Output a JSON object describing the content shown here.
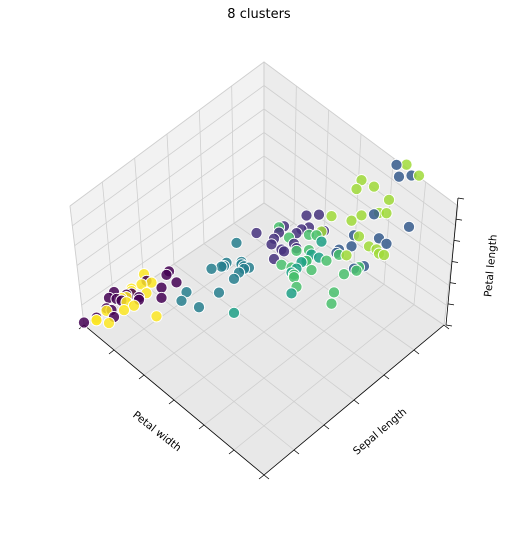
{
  "chart_data": {
    "type": "scatter",
    "projection": "3d",
    "title": "8 clusters",
    "xlabel": "Petal width",
    "ylabel": "Sepal length",
    "zlabel": "Petal length",
    "tick_labels": "hidden",
    "grid": true,
    "legend": "none",
    "colormap": "viridis",
    "point_edge_color": "#ffffff",
    "point_alpha": 0.85,
    "series": [
      {
        "color": "#440154",
        "points": [
          [
            0.2,
            5.1,
            1.4
          ],
          [
            0.2,
            4.9,
            1.4
          ],
          [
            0.2,
            4.7,
            1.3
          ],
          [
            0.2,
            4.6,
            1.5
          ],
          [
            0.2,
            5.0,
            1.4
          ],
          [
            0.4,
            5.4,
            1.7
          ],
          [
            0.3,
            4.6,
            1.4
          ],
          [
            0.2,
            5.0,
            1.5
          ],
          [
            0.2,
            4.4,
            1.4
          ],
          [
            0.1,
            4.9,
            1.5
          ],
          [
            0.2,
            5.4,
            1.5
          ],
          [
            0.2,
            4.8,
            1.6
          ],
          [
            0.1,
            4.8,
            1.4
          ],
          [
            0.1,
            4.3,
            1.1
          ],
          [
            0.2,
            5.8,
            1.2
          ],
          [
            0.4,
            5.7,
            1.5
          ],
          [
            0.4,
            5.4,
            1.3
          ],
          [
            0.3,
            5.1,
            1.4
          ],
          [
            0.3,
            5.7,
            1.7
          ],
          [
            0.3,
            5.1,
            1.5
          ]
        ]
      },
      {
        "color": "#46327e",
        "points": [
          [
            1.4,
            6.1,
            4.7
          ],
          [
            1.3,
            6.4,
            4.5
          ],
          [
            1.5,
            6.9,
            4.9
          ],
          [
            1.3,
            6.5,
            4.6
          ],
          [
            1.6,
            6.3,
            4.7
          ],
          [
            1.5,
            6.7,
            4.7
          ],
          [
            1.4,
            6.6,
            4.4
          ],
          [
            1.4,
            6.8,
            4.8
          ],
          [
            1.7,
            6.7,
            5.0
          ],
          [
            1.5,
            6.0,
            4.5
          ],
          [
            1.6,
            6.0,
            5.1
          ],
          [
            1.5,
            6.2,
            4.5
          ],
          [
            1.3,
            6.3,
            4.4
          ],
          [
            1.2,
            6.1,
            4.7
          ],
          [
            1.4,
            6.7,
            4.4
          ],
          [
            1.5,
            6.4,
            4.5
          ]
        ]
      },
      {
        "color": "#365c8d",
        "points": [
          [
            2.5,
            6.3,
            6.0
          ],
          [
            2.1,
            7.1,
            5.9
          ],
          [
            2.2,
            6.5,
            5.8
          ],
          [
            2.1,
            7.6,
            6.6
          ],
          [
            2.5,
            7.2,
            6.1
          ],
          [
            2.0,
            6.5,
            5.1
          ],
          [
            2.1,
            6.4,
            5.6
          ],
          [
            2.3,
            6.4,
            5.3
          ],
          [
            2.2,
            7.7,
            6.7
          ],
          [
            2.3,
            6.9,
            5.7
          ],
          [
            2.0,
            7.7,
            6.7
          ],
          [
            2.1,
            6.7,
            5.7
          ],
          [
            2.4,
            6.9,
            5.7
          ]
        ]
      },
      {
        "color": "#277f8e",
        "points": [
          [
            1.0,
            5.0,
            3.5
          ],
          [
            1.0,
            6.0,
            4.0
          ],
          [
            1.1,
            5.6,
            3.9
          ],
          [
            1.3,
            5.7,
            4.2
          ],
          [
            1.3,
            5.6,
            4.1
          ],
          [
            1.0,
            5.5,
            3.7
          ],
          [
            1.2,
            5.8,
            4.0
          ],
          [
            1.3,
            5.5,
            4.0
          ],
          [
            1.3,
            5.8,
            4.0
          ],
          [
            1.1,
            5.1,
            3.0
          ],
          [
            1.3,
            5.7,
            4.1
          ],
          [
            1.2,
            5.5,
            4.4
          ],
          [
            1.2,
            5.8,
            3.9
          ],
          [
            1.0,
            4.9,
            3.3
          ],
          [
            1.3,
            5.2,
            3.9
          ],
          [
            1.0,
            5.7,
            3.5
          ]
        ]
      },
      {
        "color": "#1fa187",
        "points": [
          [
            1.8,
            6.3,
            4.9
          ],
          [
            1.8,
            6.2,
            4.8
          ],
          [
            1.8,
            6.1,
            4.9
          ],
          [
            1.8,
            5.9,
            4.8
          ],
          [
            1.9,
            5.8,
            5.1
          ],
          [
            1.7,
            4.9,
            4.5
          ],
          [
            2.0,
            5.6,
            4.9
          ],
          [
            1.9,
            6.3,
            5.0
          ],
          [
            1.8,
            6.0,
            4.8
          ],
          [
            1.8,
            6.5,
            5.1
          ]
        ]
      },
      {
        "color": "#4ac16d",
        "points": [
          [
            1.6,
            6.0,
            4.5
          ],
          [
            1.5,
            6.3,
            4.9
          ],
          [
            1.8,
            5.9,
            5.0
          ],
          [
            1.7,
            6.4,
            5.3
          ],
          [
            1.9,
            5.8,
            5.1
          ],
          [
            2.0,
            5.7,
            5.0
          ],
          [
            2.4,
            5.8,
            5.1
          ],
          [
            2.3,
            6.0,
            5.0
          ],
          [
            1.9,
            6.1,
            5.6
          ],
          [
            1.8,
            6.2,
            4.8
          ],
          [
            1.5,
            6.1,
            5.6
          ],
          [
            2.0,
            6.3,
            5.1
          ],
          [
            1.8,
            6.4,
            5.5
          ],
          [
            2.4,
            6.3,
            5.6
          ],
          [
            1.8,
            6.0,
            5.5
          ],
          [
            2.1,
            6.4,
            5.4
          ],
          [
            2.3,
            6.5,
            5.2
          ],
          [
            1.9,
            5.8,
            5.0
          ],
          [
            2.0,
            6.0,
            5.2
          ],
          [
            2.3,
            6.2,
            5.4
          ]
        ]
      },
      {
        "color": "#a0da39",
        "points": [
          [
            2.2,
            6.4,
            5.6
          ],
          [
            2.4,
            6.7,
            5.8
          ],
          [
            2.3,
            6.7,
            5.7
          ],
          [
            2.5,
            6.7,
            5.8
          ],
          [
            2.1,
            6.8,
            5.5
          ],
          [
            2.3,
            6.9,
            5.1
          ],
          [
            1.8,
            6.5,
            5.5
          ],
          [
            2.0,
            6.8,
            5.9
          ],
          [
            2.2,
            7.2,
            6.0
          ],
          [
            1.9,
            7.4,
            6.1
          ],
          [
            2.1,
            7.2,
            5.8
          ],
          [
            2.0,
            7.9,
            6.4
          ],
          [
            1.8,
            6.7,
            5.8
          ],
          [
            2.0,
            7.0,
            5.8
          ],
          [
            1.8,
            7.3,
            6.3
          ],
          [
            2.3,
            7.7,
            6.9
          ],
          [
            1.8,
            7.2,
            6.1
          ],
          [
            2.1,
            7.4,
            6.0
          ]
        ]
      },
      {
        "color": "#fde725",
        "points": [
          [
            0.2,
            5.5,
            1.3
          ],
          [
            0.2,
            4.9,
            1.5
          ],
          [
            0.2,
            5.0,
            1.2
          ],
          [
            0.1,
            5.5,
            1.4
          ],
          [
            0.2,
            4.4,
            1.3
          ],
          [
            0.2,
            5.1,
            1.5
          ],
          [
            0.3,
            5.0,
            1.3
          ],
          [
            0.3,
            4.5,
            1.3
          ],
          [
            0.2,
            4.4,
            1.3
          ],
          [
            0.6,
            5.0,
            1.6
          ],
          [
            0.4,
            5.1,
            1.9
          ],
          [
            0.3,
            4.8,
            1.4
          ],
          [
            0.2,
            5.1,
            1.6
          ],
          [
            0.2,
            4.6,
            1.4
          ],
          [
            0.2,
            5.3,
            1.5
          ],
          [
            0.2,
            5.0,
            1.4
          ]
        ]
      }
    ]
  }
}
